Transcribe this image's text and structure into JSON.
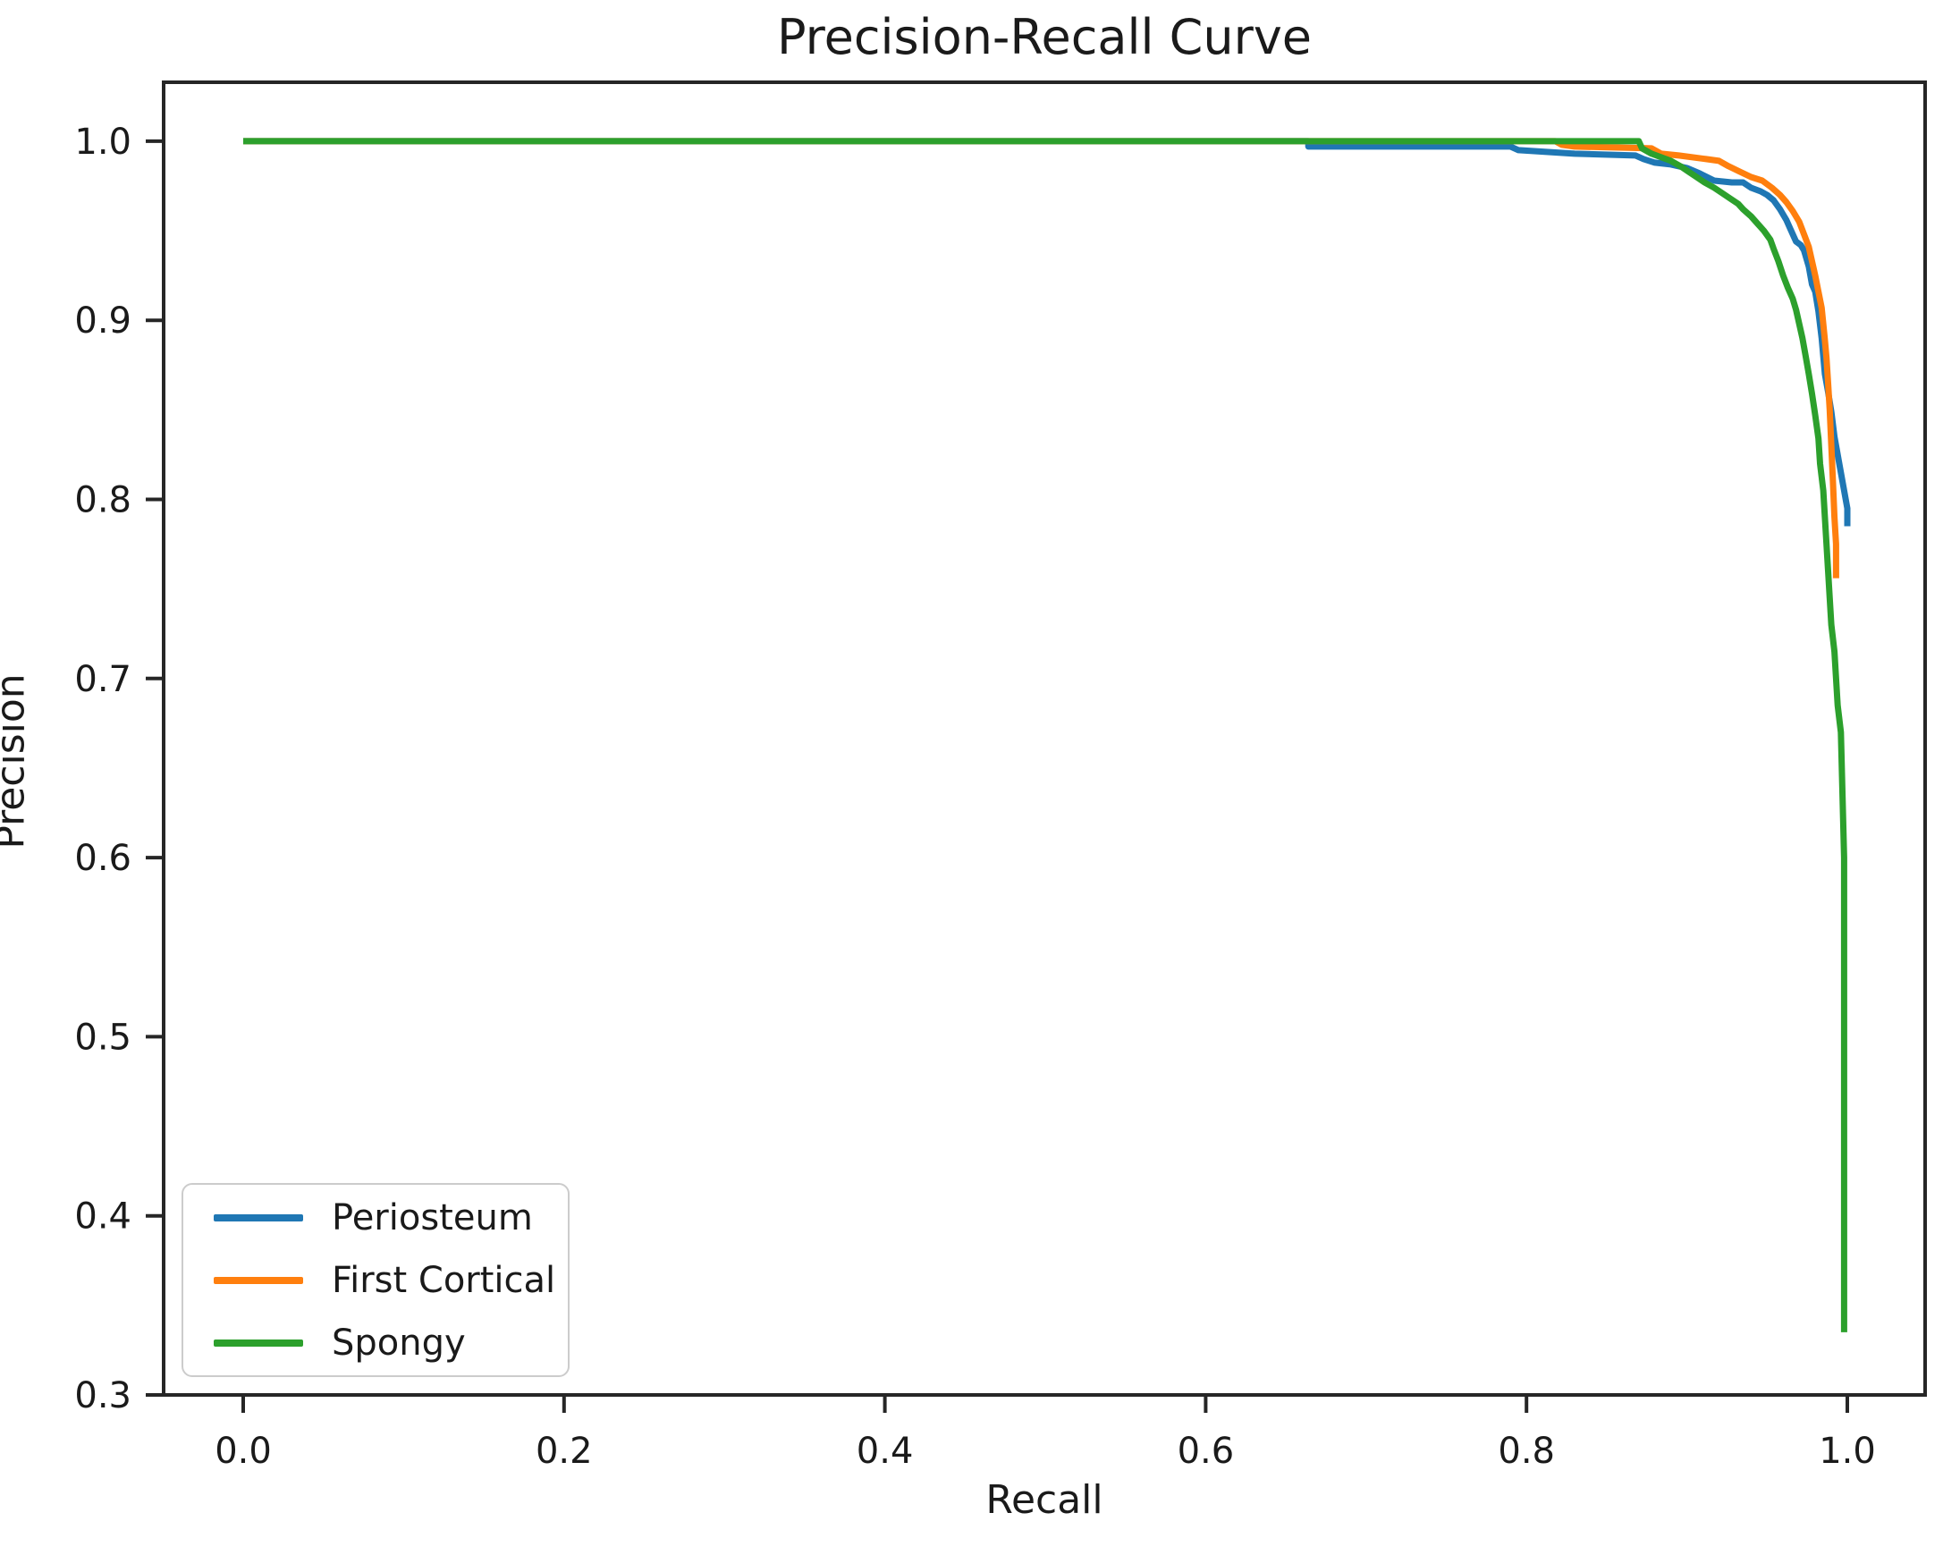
{
  "chart_data": {
    "type": "line",
    "title": "Precision-Recall Curve",
    "xlabel": "Recall",
    "ylabel": "Precision",
    "x_ticks": [
      0.0,
      0.2,
      0.4,
      0.6,
      0.8,
      1.0
    ],
    "y_ticks": [
      0.3,
      0.4,
      0.5,
      0.6,
      0.7,
      0.8,
      0.9,
      1.0
    ],
    "xlim": [
      -0.05,
      1.05
    ],
    "ylim": [
      0.3,
      1.033
    ],
    "grid": false,
    "legend_position": "lower left",
    "axis_color": "#262626",
    "text_color": "#1a1a1a",
    "background_color": "#ffffff",
    "series": [
      {
        "name": "Periosteum",
        "color": "#1f77b4",
        "points": [
          [
            0.0,
            1.0
          ],
          [
            0.664,
            1.0
          ],
          [
            0.664,
            0.997
          ],
          [
            0.79,
            0.997
          ],
          [
            0.795,
            0.995
          ],
          [
            0.83,
            0.993
          ],
          [
            0.868,
            0.992
          ],
          [
            0.873,
            0.99
          ],
          [
            0.88,
            0.988
          ],
          [
            0.89,
            0.987
          ],
          [
            0.9,
            0.985
          ],
          [
            0.908,
            0.982
          ],
          [
            0.917,
            0.978
          ],
          [
            0.928,
            0.977
          ],
          [
            0.935,
            0.977
          ],
          [
            0.94,
            0.974
          ],
          [
            0.946,
            0.972
          ],
          [
            0.95,
            0.97
          ],
          [
            0.954,
            0.967
          ],
          [
            0.958,
            0.962
          ],
          [
            0.962,
            0.956
          ],
          [
            0.965,
            0.95
          ],
          [
            0.968,
            0.944
          ],
          [
            0.971,
            0.942
          ],
          [
            0.973,
            0.939
          ],
          [
            0.976,
            0.93
          ],
          [
            0.978,
            0.92
          ],
          [
            0.98,
            0.916
          ],
          [
            0.982,
            0.905
          ],
          [
            0.984,
            0.89
          ],
          [
            0.986,
            0.87
          ],
          [
            0.988,
            0.86
          ],
          [
            0.99,
            0.849
          ],
          [
            0.992,
            0.835
          ],
          [
            0.994,
            0.825
          ],
          [
            0.996,
            0.815
          ],
          [
            0.998,
            0.805
          ],
          [
            1.0,
            0.795
          ],
          [
            1.0,
            0.785
          ]
        ]
      },
      {
        "name": "First Cortical",
        "color": "#ff7f0e",
        "points": [
          [
            0.0,
            1.0
          ],
          [
            0.818,
            1.0
          ],
          [
            0.822,
            0.998
          ],
          [
            0.83,
            0.997
          ],
          [
            0.878,
            0.996
          ],
          [
            0.884,
            0.993
          ],
          [
            0.895,
            0.992
          ],
          [
            0.912,
            0.99
          ],
          [
            0.92,
            0.989
          ],
          [
            0.926,
            0.986
          ],
          [
            0.933,
            0.983
          ],
          [
            0.94,
            0.98
          ],
          [
            0.947,
            0.978
          ],
          [
            0.953,
            0.974
          ],
          [
            0.958,
            0.97
          ],
          [
            0.962,
            0.966
          ],
          [
            0.966,
            0.961
          ],
          [
            0.97,
            0.955
          ],
          [
            0.973,
            0.948
          ],
          [
            0.976,
            0.941
          ],
          [
            0.978,
            0.933
          ],
          [
            0.98,
            0.925
          ],
          [
            0.982,
            0.916
          ],
          [
            0.984,
            0.907
          ],
          [
            0.985,
            0.898
          ],
          [
            0.986,
            0.889
          ],
          [
            0.987,
            0.879
          ],
          [
            0.988,
            0.865
          ],
          [
            0.989,
            0.85
          ],
          [
            0.99,
            0.83
          ],
          [
            0.991,
            0.81
          ],
          [
            0.992,
            0.79
          ],
          [
            0.993,
            0.775
          ],
          [
            0.993,
            0.756
          ]
        ]
      },
      {
        "name": "Spongy",
        "color": "#2ca02c",
        "points": [
          [
            0.0,
            1.0
          ],
          [
            0.87,
            1.0
          ],
          [
            0.872,
            0.996
          ],
          [
            0.878,
            0.993
          ],
          [
            0.884,
            0.991
          ],
          [
            0.89,
            0.989
          ],
          [
            0.896,
            0.986
          ],
          [
            0.901,
            0.983
          ],
          [
            0.906,
            0.98
          ],
          [
            0.911,
            0.977
          ],
          [
            0.917,
            0.974
          ],
          [
            0.922,
            0.971
          ],
          [
            0.927,
            0.968
          ],
          [
            0.932,
            0.965
          ],
          [
            0.935,
            0.962
          ],
          [
            0.94,
            0.958
          ],
          [
            0.944,
            0.954
          ],
          [
            0.948,
            0.95
          ],
          [
            0.952,
            0.945
          ],
          [
            0.954,
            0.94
          ],
          [
            0.957,
            0.933
          ],
          [
            0.96,
            0.925
          ],
          [
            0.963,
            0.918
          ],
          [
            0.966,
            0.912
          ],
          [
            0.968,
            0.906
          ],
          [
            0.97,
            0.898
          ],
          [
            0.972,
            0.89
          ],
          [
            0.974,
            0.88
          ],
          [
            0.976,
            0.87
          ],
          [
            0.978,
            0.859
          ],
          [
            0.98,
            0.847
          ],
          [
            0.982,
            0.834
          ],
          [
            0.983,
            0.82
          ],
          [
            0.985,
            0.805
          ],
          [
            0.986,
            0.79
          ],
          [
            0.987,
            0.775
          ],
          [
            0.988,
            0.76
          ],
          [
            0.989,
            0.745
          ],
          [
            0.99,
            0.73
          ],
          [
            0.992,
            0.715
          ],
          [
            0.993,
            0.7
          ],
          [
            0.994,
            0.685
          ],
          [
            0.996,
            0.67
          ],
          [
            0.998,
            0.6
          ],
          [
            0.998,
            0.335
          ]
        ]
      }
    ]
  }
}
